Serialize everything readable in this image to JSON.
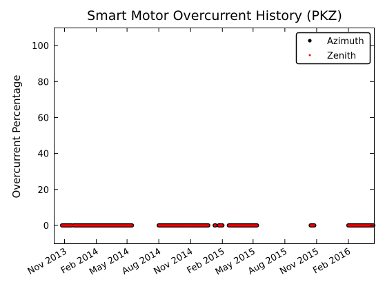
{
  "chart_data": {
    "type": "scatter",
    "title": "Smart Motor Overcurrent History (PKZ)",
    "xlabel": "",
    "ylabel": "Overcurrent Percentage",
    "xlim": [
      "2013-10-01",
      "2016-04-15"
    ],
    "ylim": [
      -10,
      110
    ],
    "x_ticks": [
      {
        "date": "2013-11-01",
        "label": "Nov 2013"
      },
      {
        "date": "2014-02-01",
        "label": "Feb 2014"
      },
      {
        "date": "2014-05-01",
        "label": "May 2014"
      },
      {
        "date": "2014-08-01",
        "label": "Aug 2014"
      },
      {
        "date": "2014-11-01",
        "label": "Nov 2014"
      },
      {
        "date": "2015-02-01",
        "label": "Feb 2015"
      },
      {
        "date": "2015-05-01",
        "label": "May 2015"
      },
      {
        "date": "2015-08-01",
        "label": "Aug 2015"
      },
      {
        "date": "2015-11-01",
        "label": "Nov 2015"
      },
      {
        "date": "2016-02-01",
        "label": "Feb 2016"
      }
    ],
    "y_ticks": [
      0,
      20,
      40,
      60,
      80,
      100
    ],
    "grid": false,
    "legend": "top-right",
    "series": [
      {
        "name": "Azimuth",
        "color": "#000000",
        "marker": "dot",
        "segments": [
          [
            "2013-10-25",
            "2013-11-22"
          ],
          [
            "2013-11-28",
            "2014-05-15"
          ],
          [
            "2014-08-01",
            "2014-11-01"
          ],
          [
            "2014-11-01",
            "2014-12-22"
          ],
          [
            "2015-01-10",
            "2015-01-12"
          ],
          [
            "2015-01-22",
            "2015-02-01"
          ],
          [
            "2015-02-20",
            "2015-05-12"
          ],
          [
            "2015-10-15",
            "2015-10-25"
          ],
          [
            "2016-02-01",
            "2016-04-15"
          ]
        ],
        "y": 0
      },
      {
        "name": "Zenith",
        "color": "#ff0000",
        "marker": "dot",
        "segments": [
          [
            "2013-10-25",
            "2013-11-22"
          ],
          [
            "2013-11-28",
            "2014-05-15"
          ],
          [
            "2014-08-01",
            "2014-11-01"
          ],
          [
            "2014-11-01",
            "2014-12-22"
          ],
          [
            "2015-01-10",
            "2015-01-12"
          ],
          [
            "2015-01-22",
            "2015-02-01"
          ],
          [
            "2015-02-20",
            "2015-05-12"
          ],
          [
            "2015-10-15",
            "2015-10-25"
          ],
          [
            "2016-02-01",
            "2016-04-15"
          ]
        ],
        "y": 0
      }
    ]
  }
}
